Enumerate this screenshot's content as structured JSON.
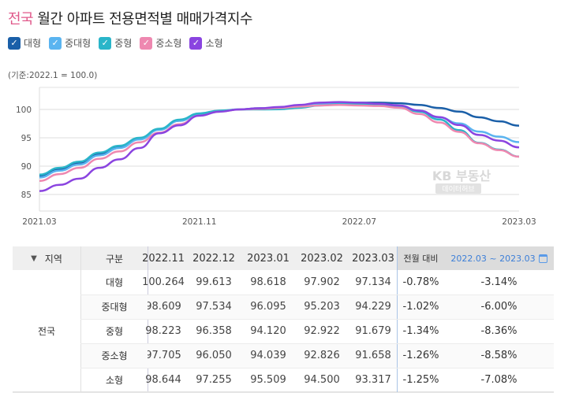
{
  "title": {
    "highlight": "전국",
    "rest": "월간 아파트 전용면적별 매매가격지수"
  },
  "legend": [
    {
      "label": "대형",
      "color": "#1a5fa8",
      "checked": true
    },
    {
      "label": "중대형",
      "color": "#5ab4f0",
      "checked": true
    },
    {
      "label": "중형",
      "color": "#2ab5c9",
      "checked": true
    },
    {
      "label": "중소형",
      "color": "#ee88b0",
      "checked": true
    },
    {
      "label": "소형",
      "color": "#8a44e0",
      "checked": true
    }
  ],
  "base_note": "(기준:2022.1 = 100.0)",
  "watermark": {
    "line1": "KB 부동산",
    "line2": "데이터허브"
  },
  "chart_data": {
    "type": "line",
    "x": [
      "2021.03",
      "2021.04",
      "2021.05",
      "2021.06",
      "2021.07",
      "2021.08",
      "2021.09",
      "2021.10",
      "2021.11",
      "2021.12",
      "2022.01",
      "2022.02",
      "2022.03",
      "2022.04",
      "2022.05",
      "2022.06",
      "2022.07",
      "2022.08",
      "2022.09",
      "2022.10",
      "2022.11",
      "2022.12",
      "2023.01",
      "2023.02",
      "2023.03"
    ],
    "x_tick_labels": [
      "2021.03",
      "2021.11",
      "2022.07",
      "2023.03"
    ],
    "y_ticks": [
      85,
      90,
      95,
      100
    ],
    "ylim": [
      82,
      104
    ],
    "grid": true,
    "series": [
      {
        "name": "대형",
        "color": "#1a5fa8",
        "values": [
          88.3,
          89.5,
          90.6,
          92.2,
          93.4,
          94.8,
          96.5,
          98.0,
          99.2,
          99.7,
          100,
          100.2,
          100.28,
          100.6,
          101.0,
          101.2,
          101.2,
          101.2,
          101.1,
          100.8,
          100.264,
          99.613,
          98.618,
          97.902,
          97.134
        ]
      },
      {
        "name": "중대형",
        "color": "#5ab4f0",
        "values": [
          88.0,
          89.2,
          90.3,
          91.9,
          93.2,
          94.7,
          96.4,
          98.0,
          99.2,
          99.7,
          100,
          100.1,
          100.24,
          100.5,
          100.9,
          101.0,
          101.0,
          100.9,
          100.6,
          99.8,
          98.609,
          97.534,
          96.095,
          95.203,
          94.229
        ]
      },
      {
        "name": "중형",
        "color": "#2ab5c9",
        "values": [
          88.5,
          89.7,
          90.8,
          92.4,
          93.6,
          95.0,
          96.6,
          98.2,
          99.3,
          99.8,
          100,
          100.0,
          100.04,
          100.3,
          100.7,
          100.9,
          100.9,
          100.8,
          100.5,
          99.6,
          98.223,
          96.358,
          94.12,
          92.922,
          91.679
        ]
      },
      {
        "name": "중소형",
        "color": "#ee88b0",
        "values": [
          87.4,
          88.6,
          89.7,
          91.3,
          92.6,
          94.2,
          95.9,
          97.4,
          98.9,
          99.6,
          100,
          100.1,
          100.26,
          100.5,
          100.7,
          100.8,
          100.7,
          100.6,
          100.3,
          99.2,
          97.705,
          96.05,
          94.039,
          92.826,
          91.658
        ]
      },
      {
        "name": "소형",
        "color": "#8a44e0",
        "values": [
          85.6,
          86.7,
          87.8,
          89.7,
          91.2,
          93.2,
          95.8,
          97.2,
          98.9,
          99.6,
          100,
          100.2,
          100.43,
          100.8,
          101.2,
          101.3,
          101.2,
          101.0,
          100.7,
          99.8,
          98.644,
          97.255,
          95.509,
          94.5,
          93.317
        ]
      }
    ]
  },
  "table": {
    "headers": {
      "region": "지역",
      "category": "구분",
      "months": [
        "2022.11",
        "2022.12",
        "2023.01",
        "2023.02",
        "2023.03"
      ],
      "mom": "전월 대비",
      "range": "2022.03 ~ 2023.03"
    },
    "region": "전국",
    "rows": [
      {
        "category": "대형",
        "values": [
          "100.264",
          "99.613",
          "98.618",
          "97.902",
          "97.134"
        ],
        "mom": "-0.78%",
        "range": "-3.14%"
      },
      {
        "category": "중대형",
        "values": [
          "98.609",
          "97.534",
          "96.095",
          "95.203",
          "94.229"
        ],
        "mom": "-1.02%",
        "range": "-6.00%"
      },
      {
        "category": "중형",
        "values": [
          "98.223",
          "96.358",
          "94.120",
          "92.922",
          "91.679"
        ],
        "mom": "-1.34%",
        "range": "-8.36%"
      },
      {
        "category": "중소형",
        "values": [
          "97.705",
          "96.050",
          "94.039",
          "92.826",
          "91.658"
        ],
        "mom": "-1.26%",
        "range": "-8.58%"
      },
      {
        "category": "소형",
        "values": [
          "98.644",
          "97.255",
          "95.509",
          "94.500",
          "93.317"
        ],
        "mom": "-1.25%",
        "range": "-7.08%"
      }
    ]
  }
}
